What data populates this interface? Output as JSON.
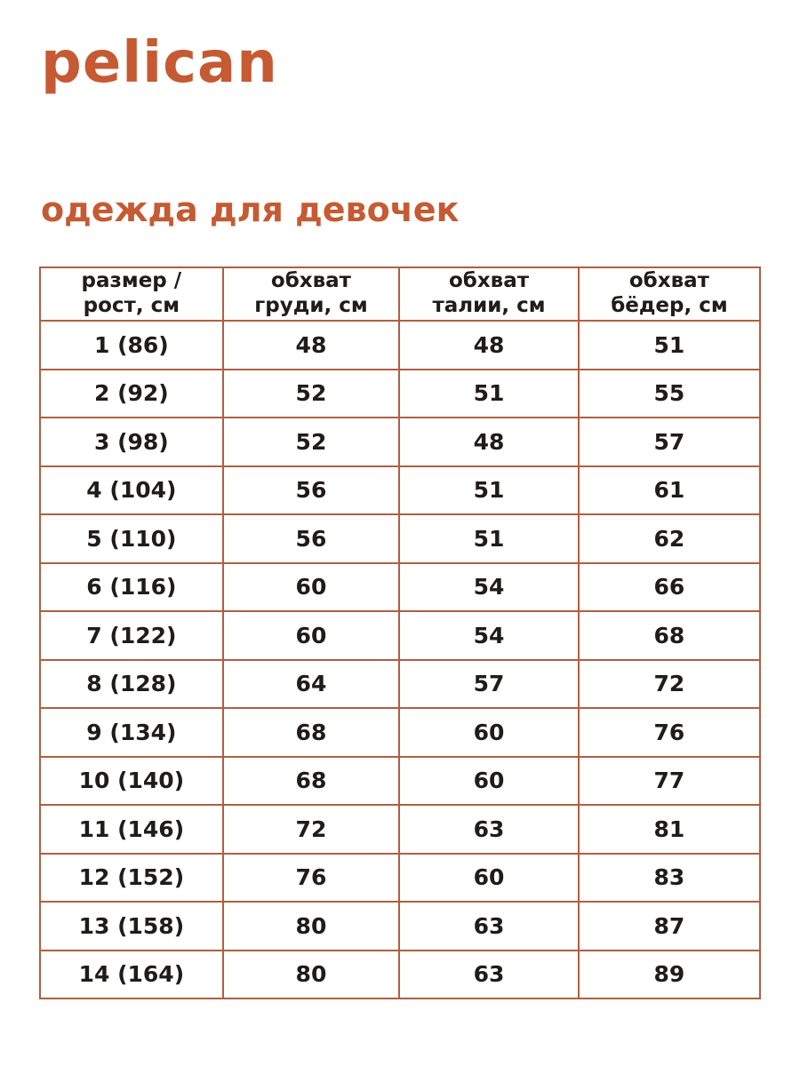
{
  "brand": {
    "logo_text": "pelican"
  },
  "heading": {
    "title": "одежда для девочек"
  },
  "colors": {
    "accent": "#c65a32",
    "table_border": "#b05f3f",
    "text": "#1f1c1a",
    "background": "#ffffff"
  },
  "size_table": {
    "headers": [
      "размер /\nрост, см",
      "обхват\nгруди, см",
      "обхват\nталии, см",
      "обхват\nбёдер, см"
    ],
    "rows": [
      [
        "1 (86)",
        "48",
        "48",
        "51"
      ],
      [
        "2 (92)",
        "52",
        "51",
        "55"
      ],
      [
        "3 (98)",
        "52",
        "48",
        "57"
      ],
      [
        "4 (104)",
        "56",
        "51",
        "61"
      ],
      [
        "5 (110)",
        "56",
        "51",
        "62"
      ],
      [
        "6 (116)",
        "60",
        "54",
        "66"
      ],
      [
        "7 (122)",
        "60",
        "54",
        "68"
      ],
      [
        "8 (128)",
        "64",
        "57",
        "72"
      ],
      [
        "9 (134)",
        "68",
        "60",
        "76"
      ],
      [
        "10 (140)",
        "68",
        "60",
        "77"
      ],
      [
        "11 (146)",
        "72",
        "63",
        "81"
      ],
      [
        "12 (152)",
        "76",
        "60",
        "83"
      ],
      [
        "13 (158)",
        "80",
        "63",
        "87"
      ],
      [
        "14 (164)",
        "80",
        "63",
        "89"
      ]
    ]
  }
}
